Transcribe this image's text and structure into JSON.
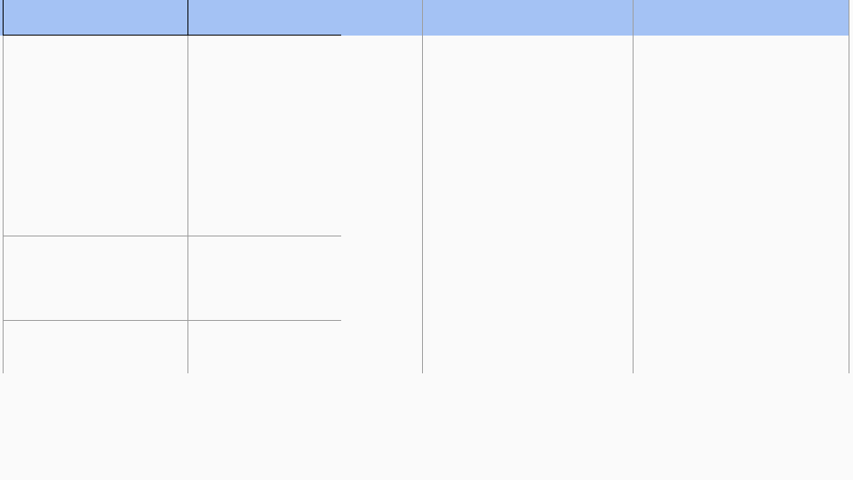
{
  "table": {
    "columns": [
      {
        "label": ""
      },
      {
        "label": ""
      },
      {
        "label": ""
      },
      {
        "label": ""
      }
    ],
    "rows": [
      {
        "cells": [
          "",
          ""
        ]
      },
      {
        "cells": [
          "",
          ""
        ]
      },
      {
        "cells": [
          "",
          ""
        ]
      }
    ],
    "tall_cells": [
      "",
      "",
      ""
    ]
  },
  "colors": {
    "header_background": "#a4c2f4",
    "page_background": "#fafafa",
    "grid_line": "#9e9e9e"
  }
}
